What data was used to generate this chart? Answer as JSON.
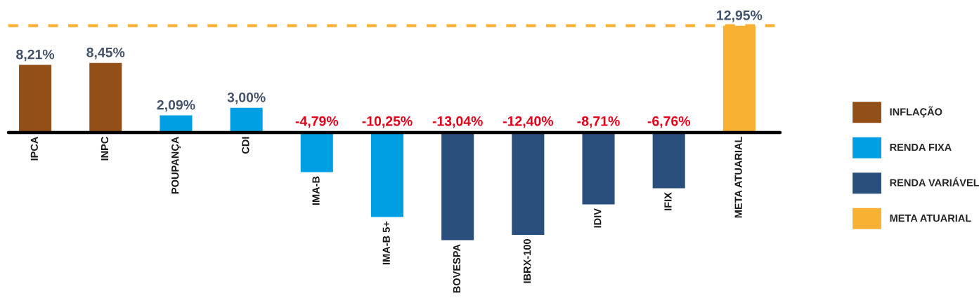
{
  "chart_data": {
    "type": "bar",
    "categories": [
      "IPCA",
      "INPC",
      "POUPANÇA",
      "CDI",
      "IMA-B",
      "IMA-B 5+",
      "BOVESPA",
      "IBRX-100",
      "IDIV",
      "IFIX",
      "META ATUARIAL"
    ],
    "series": [
      {
        "name": "INFLAÇÃO",
        "color": "#934f18",
        "values": [
          8.21,
          8.45,
          null,
          null,
          null,
          null,
          null,
          null,
          null,
          null,
          null
        ],
        "value_labels": [
          "8,21%",
          "8,45%",
          null,
          null,
          null,
          null,
          null,
          null,
          null,
          null,
          null
        ]
      },
      {
        "name": "RENDA FIXA",
        "color": "#009fe3",
        "values": [
          null,
          null,
          2.09,
          3.0,
          -4.79,
          -10.25,
          null,
          null,
          null,
          null,
          null
        ],
        "value_labels": [
          null,
          null,
          "2,09%",
          "3,00%",
          "-4,79%",
          "-10,25%",
          null,
          null,
          null,
          null,
          null
        ]
      },
      {
        "name": "RENDA VARIÁVEL",
        "color": "#2a4f7c",
        "values": [
          null,
          null,
          null,
          null,
          null,
          null,
          -13.04,
          -12.4,
          -8.71,
          -6.76,
          null
        ],
        "value_labels": [
          null,
          null,
          null,
          null,
          null,
          null,
          "-13,04%",
          "-12,40%",
          "-8,71%",
          "-6,76%",
          null
        ]
      },
      {
        "name": "META ATUARIAL",
        "color": "#f8b133",
        "values": [
          null,
          null,
          null,
          null,
          null,
          null,
          null,
          null,
          null,
          null,
          12.95
        ],
        "value_labels": [
          null,
          null,
          null,
          null,
          null,
          null,
          null,
          null,
          null,
          null,
          "12,95%"
        ]
      }
    ],
    "ref_lines": [
      {
        "axis": "y",
        "value": 12.95,
        "color": "#f8b133",
        "line_style": "dashed"
      }
    ],
    "legend": "right",
    "tick_labels": "x"
  }
}
